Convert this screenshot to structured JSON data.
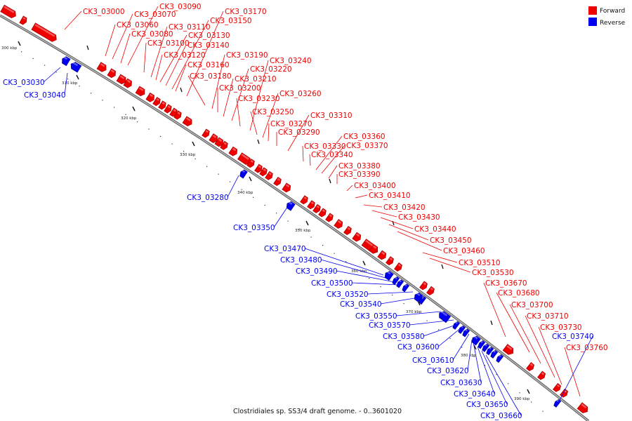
{
  "title": "Clostridiales sp. SS3/4 draft genome. - 0..3601020",
  "legend": [
    {
      "label": "Forward",
      "color": "#ee0000"
    },
    {
      "label": "Reverse",
      "color": "#0000ee"
    }
  ],
  "ticks": [
    "300 kbp",
    "310 kbp",
    "320 kbp",
    "330 kbp",
    "340 kbp",
    "350 kbp",
    "360 kbp",
    "370 kbp",
    "380 kbp",
    "390 kbp"
  ],
  "colors": {
    "forward": "#ee0000",
    "reverse": "#0000ee",
    "backbone": "#999999"
  },
  "forward_genes": [
    "CK3_03000",
    "CK3_03060",
    "CK3_03070",
    "CK3_03080",
    "CK3_03090",
    "CK3_03100",
    "CK3_03110",
    "CK3_03120",
    "CK3_03130",
    "CK3_03140",
    "CK3_03150",
    "CK3_03160",
    "CK3_03170",
    "CK3_03180",
    "CK3_03190",
    "CK3_03200",
    "CK3_03210",
    "CK3_03220",
    "CK3_03230",
    "CK3_03240",
    "CK3_03250",
    "CK3_03260",
    "CK3_03270",
    "CK3_03290",
    "CK3_03310",
    "CK3_03330",
    "CK3_03340",
    "CK3_03360",
    "CK3_03370",
    "CK3_03380",
    "CK3_03390",
    "CK3_03400",
    "CK3_03410",
    "CK3_03420",
    "CK3_03430",
    "CK3_03440",
    "CK3_03450",
    "CK3_03460",
    "CK3_03510",
    "CK3_03530",
    "CK3_03670",
    "CK3_03680",
    "CK3_03700",
    "CK3_03710",
    "CK3_03730",
    "CK3_03760"
  ],
  "reverse_genes": [
    "CK3_03030",
    "CK3_03040",
    "CK3_03280",
    "CK3_03350",
    "CK3_03470",
    "CK3_03480",
    "CK3_03490",
    "CK3_03500",
    "CK3_03520",
    "CK3_03540",
    "CK3_03550",
    "CK3_03570",
    "CK3_03580",
    "CK3_03600",
    "CK3_03610",
    "CK3_03620",
    "CK3_03630",
    "CK3_03640",
    "CK3_03650",
    "CK3_03660",
    "CK3_03740"
  ]
}
